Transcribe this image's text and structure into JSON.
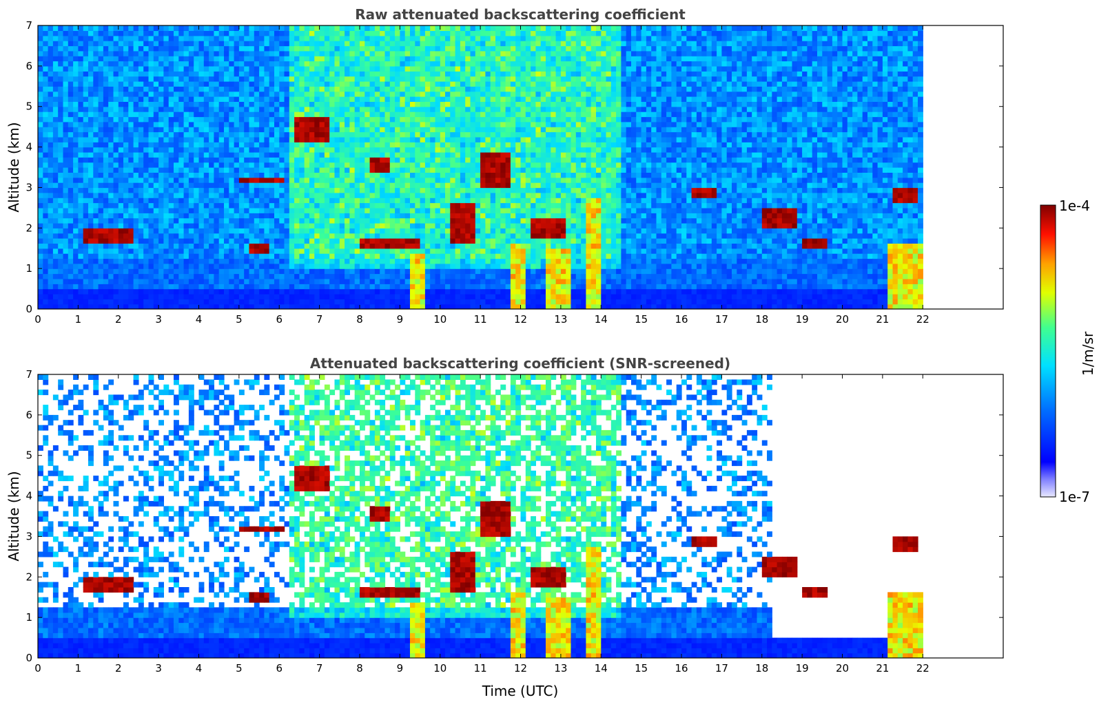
{
  "chart_data": [
    {
      "type": "heatmap",
      "title": "Raw attenuated backscattering coefficient",
      "xlabel": "",
      "ylabel": "Altitude (km)",
      "xlim": [
        0,
        24
      ],
      "ylim": [
        0,
        7
      ],
      "xticks": [
        "0",
        "1",
        "2",
        "3",
        "4",
        "5",
        "6",
        "7",
        "8",
        "9",
        "10",
        "11",
        "12",
        "13",
        "14",
        "15",
        "16",
        "17",
        "18",
        "19",
        "20",
        "21",
        "22"
      ],
      "yticks": [
        "0",
        "1",
        "2",
        "3",
        "4",
        "5",
        "6",
        "7"
      ],
      "data_end_time": 22,
      "features": [
        {
          "kind": "cloud",
          "t": [
            1.1,
            2.4
          ],
          "alt": [
            1.65,
            1.95
          ]
        },
        {
          "kind": "cloud",
          "t": [
            5.0,
            6.1
          ],
          "alt": [
            3.15,
            3.3
          ]
        },
        {
          "kind": "cloud",
          "t": [
            5.2,
            5.8
          ],
          "alt": [
            1.4,
            1.6
          ]
        },
        {
          "kind": "cloud",
          "t": [
            6.4,
            7.2
          ],
          "alt": [
            4.1,
            4.7
          ]
        },
        {
          "kind": "cloud",
          "t": [
            8.3,
            8.8
          ],
          "alt": [
            3.4,
            3.8
          ]
        },
        {
          "kind": "cloud",
          "t": [
            8.0,
            9.5
          ],
          "alt": [
            1.5,
            1.7
          ]
        },
        {
          "kind": "cloud",
          "t": [
            10.3,
            10.9
          ],
          "alt": [
            1.6,
            2.6
          ]
        },
        {
          "kind": "cloud",
          "t": [
            11.0,
            11.7
          ],
          "alt": [
            3.0,
            3.9
          ]
        },
        {
          "kind": "cloud",
          "t": [
            12.2,
            13.1
          ],
          "alt": [
            1.8,
            2.3
          ]
        },
        {
          "kind": "cloud",
          "t": [
            16.3,
            16.9
          ],
          "alt": [
            2.75,
            3.0
          ]
        },
        {
          "kind": "cloud",
          "t": [
            18.0,
            18.9
          ],
          "alt": [
            2.0,
            2.5
          ]
        },
        {
          "kind": "cloud",
          "t": [
            19.0,
            19.6
          ],
          "alt": [
            1.55,
            1.75
          ]
        },
        {
          "kind": "cloud",
          "t": [
            21.3,
            21.9
          ],
          "alt": [
            2.6,
            3.0
          ]
        },
        {
          "kind": "plume",
          "t": [
            9.2,
            9.6
          ],
          "alt": [
            0,
            1.4
          ]
        },
        {
          "kind": "plume",
          "t": [
            11.8,
            12.1
          ],
          "alt": [
            0,
            1.6
          ]
        },
        {
          "kind": "plume",
          "t": [
            12.6,
            13.2
          ],
          "alt": [
            0,
            1.5
          ]
        },
        {
          "kind": "plume",
          "t": [
            13.6,
            14.0
          ],
          "alt": [
            0,
            2.8
          ]
        },
        {
          "kind": "plume",
          "t": [
            21.1,
            22.0
          ],
          "alt": [
            0,
            1.6
          ]
        }
      ]
    },
    {
      "type": "heatmap",
      "title": "Attenuated backscattering coefficient (SNR-screened)",
      "xlabel": "Time (UTC)",
      "ylabel": "Altitude (km)",
      "xlim": [
        0,
        24
      ],
      "ylim": [
        0,
        7
      ],
      "xticks": [
        "0",
        "1",
        "2",
        "3",
        "4",
        "5",
        "6",
        "7",
        "8",
        "9",
        "10",
        "11",
        "12",
        "13",
        "14",
        "15",
        "16",
        "17",
        "18",
        "19",
        "20",
        "21",
        "22"
      ],
      "yticks": [
        "0",
        "1",
        "2",
        "3",
        "4",
        "5",
        "6",
        "7"
      ],
      "data_end_time": 22
    }
  ],
  "colorbar": {
    "max_label": "1e-4",
    "min_label": "1e-7",
    "unit_label": "1/m/sr",
    "scale": "log"
  },
  "colormap": [
    "#e8e8ff",
    "#0000ff",
    "#00a0ff",
    "#00ffff",
    "#80ff80",
    "#ffff00",
    "#ff8000",
    "#ff0000",
    "#800000"
  ]
}
